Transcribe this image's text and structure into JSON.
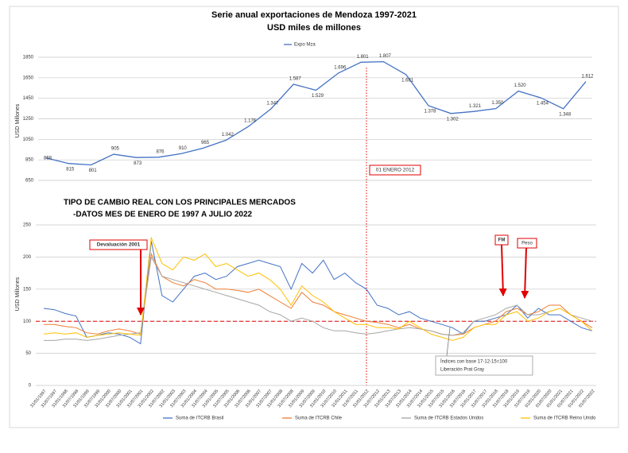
{
  "chart_data": [
    {
      "type": "line",
      "title": "Serie anual exportaciones de Mendoza 1997-2021",
      "subtitle": "USD miles de millones",
      "y_label": "USD Millones",
      "ylim": [
        650,
        1850
      ],
      "yticks": [
        650,
        850,
        1050,
        1250,
        1450,
        1650,
        1850
      ],
      "grid": true,
      "legend": "top",
      "series": [
        {
          "name": "Expo Mza",
          "color": "#4472c4",
          "values": [
            868,
            815,
            801,
            905,
            873,
            876,
            910,
            965,
            1042,
            1176,
            1347,
            1587,
            1529,
            1696,
            1801,
            1807,
            1681,
            1378,
            1302,
            1321,
            1350,
            1520,
            1454,
            1348,
            1612
          ],
          "value_labels": [
            "868",
            "815",
            "801",
            "905",
            "873",
            "876",
            "910",
            "965",
            "1.042",
            "1.176",
            "1.347",
            "1.587",
            "1.529",
            "1.696",
            "1.801",
            "1.807",
            "1.681",
            "1.378",
            "1.302",
            "1.321",
            "1.350",
            "1.520",
            "1.454",
            "1.348",
            "1.612"
          ]
        }
      ],
      "annotations": [
        "01 ENERO 2012"
      ]
    },
    {
      "type": "line",
      "title": "TIPO DE CAMBIO REAL CON LOS PRINCIPALES MERCADOS",
      "subtitle": "-DATOS MES DE ENERO DE 1997 A JULIO 2022",
      "y_label": "USD Millones",
      "ylim": [
        0,
        250
      ],
      "yticks": [
        0,
        50,
        100,
        150,
        200,
        250
      ],
      "grid": true,
      "legend": "bottom",
      "hline": 100,
      "categories": [
        "31/01/1997",
        "31/07/1997",
        "31/01/1998",
        "31/07/1998",
        "31/01/1999",
        "31/07/1999",
        "31/01/2000",
        "31/07/2000",
        "31/01/2001",
        "31/07/2001",
        "31/01/2002",
        "31/07/2002",
        "31/01/2003",
        "31/07/2003",
        "31/01/2004",
        "31/07/2004",
        "31/01/2005",
        "31/07/2005",
        "31/01/2006",
        "31/07/2006",
        "31/01/2007",
        "31/07/2007",
        "31/01/2008",
        "31/07/2008",
        "31/01/2009",
        "31/07/2009",
        "31/01/2010",
        "31/07/2010",
        "31/01/2011",
        "31/07/2011",
        "31/01/2012",
        "31/07/2012",
        "31/01/2013",
        "31/07/2013",
        "31/01/2014",
        "31/07/2014",
        "31/01/2015",
        "31/07/2015",
        "31/01/2016",
        "31/07/2016",
        "31/01/2017",
        "31/07/2017",
        "31/01/2018",
        "31/07/2018",
        "31/01/2019",
        "31/07/2019",
        "01/01/2020",
        "01/07/2020",
        "01/01/2021",
        "01/07/2021",
        "01/01/2022",
        "01/07/2022"
      ],
      "series": [
        {
          "name": "Suma de ITCRB Brasil",
          "color": "#4472c4",
          "values": [
            120,
            118,
            112,
            108,
            75,
            78,
            82,
            80,
            75,
            65,
            225,
            140,
            130,
            150,
            170,
            175,
            165,
            170,
            185,
            190,
            195,
            190,
            185,
            150,
            190,
            175,
            195,
            165,
            175,
            160,
            150,
            125,
            120,
            110,
            115,
            105,
            100,
            95,
            90,
            80,
            100,
            100,
            105,
            110,
            125,
            105,
            120,
            110,
            110,
            100,
            90,
            85
          ]
        },
        {
          "name": "Suma de ITCRB Chile",
          "color": "#ed7d31",
          "values": [
            95,
            95,
            92,
            90,
            82,
            80,
            85,
            88,
            85,
            80,
            205,
            170,
            160,
            155,
            165,
            160,
            150,
            150,
            148,
            145,
            150,
            140,
            130,
            120,
            145,
            130,
            125,
            115,
            110,
            105,
            100,
            98,
            95,
            90,
            95,
            88,
            85,
            80,
            78,
            80,
            90,
            95,
            100,
            115,
            120,
            110,
            115,
            125,
            125,
            110,
            100,
            90
          ]
        },
        {
          "name": "Suma de ITCRB Estados Unidos",
          "color": "#a5a5a5",
          "values": [
            70,
            70,
            72,
            72,
            70,
            72,
            75,
            78,
            80,
            82,
            200,
            170,
            165,
            160,
            155,
            150,
            145,
            140,
            135,
            130,
            125,
            115,
            110,
            100,
            105,
            100,
            90,
            85,
            85,
            82,
            80,
            82,
            85,
            88,
            90,
            88,
            85,
            80,
            78,
            82,
            100,
            105,
            110,
            120,
            125,
            110,
            110,
            115,
            120,
            110,
            105,
            100
          ]
        },
        {
          "name": "Suma de ITCRB Reino Unido",
          "color": "#ffc000",
          "values": [
            80,
            82,
            80,
            82,
            75,
            78,
            80,
            82,
            80,
            78,
            230,
            190,
            180,
            200,
            195,
            205,
            185,
            190,
            180,
            170,
            175,
            165,
            150,
            125,
            155,
            140,
            130,
            115,
            105,
            95,
            95,
            90,
            90,
            88,
            100,
            90,
            80,
            75,
            70,
            75,
            90,
            95,
            95,
            110,
            115,
            100,
            105,
            115,
            120,
            110,
            100,
            85
          ]
        }
      ],
      "annotations": [
        "Devaluación 2001",
        "FM",
        "Peso",
        "Índices con base 17-12-15=100",
        "Liberación Prat Gray"
      ]
    }
  ]
}
